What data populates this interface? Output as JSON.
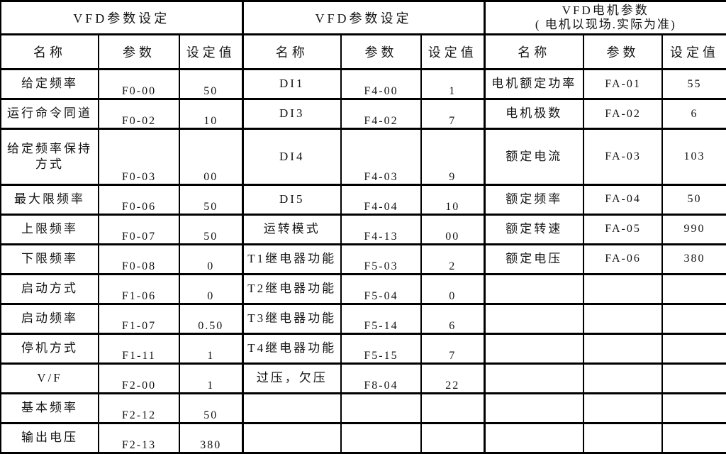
{
  "table": {
    "total_data_rows": 12,
    "sections": [
      {
        "title": "VFD参数设定",
        "columns": [
          "名称",
          "参数",
          "设定值"
        ],
        "rows": [
          [
            "给定频率",
            "F0-00",
            "50"
          ],
          [
            "运行命令同道",
            "F0-02",
            "10"
          ],
          [
            "给定频率保持方式",
            "F0-03",
            "00"
          ],
          [
            "最大限频率",
            "F0-06",
            "50"
          ],
          [
            "上限频率",
            "F0-07",
            "50"
          ],
          [
            "下限频率",
            "F0-08",
            "0"
          ],
          [
            "启动方式",
            "F1-06",
            "0"
          ],
          [
            "启动频率",
            "F1-07",
            "0.50"
          ],
          [
            "停机方式",
            "F1-11",
            "1"
          ],
          [
            "V/F",
            "F2-00",
            "1"
          ],
          [
            "基本频率",
            "F2-12",
            "50"
          ],
          [
            "输出电压",
            "F2-13",
            "380"
          ]
        ]
      },
      {
        "title": "VFD参数设定",
        "columns": [
          "名称",
          "参数",
          "设定值"
        ],
        "rows": [
          [
            "DI1",
            "F4-00",
            "1"
          ],
          [
            "DI3",
            "F4-02",
            "7"
          ],
          [
            "DI4",
            "F4-03",
            "9"
          ],
          [
            "DI5",
            "F4-04",
            "10"
          ],
          [
            "运转模式",
            "F4-13",
            "00"
          ],
          [
            "T1继电器功能",
            "F5-03",
            "2"
          ],
          [
            "T2继电器功能",
            "F5-04",
            "0"
          ],
          [
            "T3继电器功能",
            "F5-14",
            "6"
          ],
          [
            "T4继电器功能",
            "F5-15",
            "7"
          ],
          [
            "过压，欠压",
            "F8-04",
            "22"
          ]
        ]
      },
      {
        "title_line1": "VFD电机参数",
        "title_line2": "( 电机以现场.实际为准)",
        "columns": [
          "名称",
          "参数",
          "设定值"
        ],
        "rows": [
          [
            "电机额定功率",
            "FA-01",
            "55"
          ],
          [
            "电机极数",
            "FA-02",
            "6"
          ],
          [
            "额定电流",
            "FA-03",
            "103"
          ],
          [
            "额定频率",
            "FA-04",
            "50"
          ],
          [
            "额定转速",
            "FA-05",
            "990"
          ],
          [
            "额定电压",
            "FA-06",
            "380"
          ]
        ]
      }
    ]
  },
  "colors": {
    "border": "#000000",
    "text": "#141414",
    "background": "#ffffff"
  }
}
